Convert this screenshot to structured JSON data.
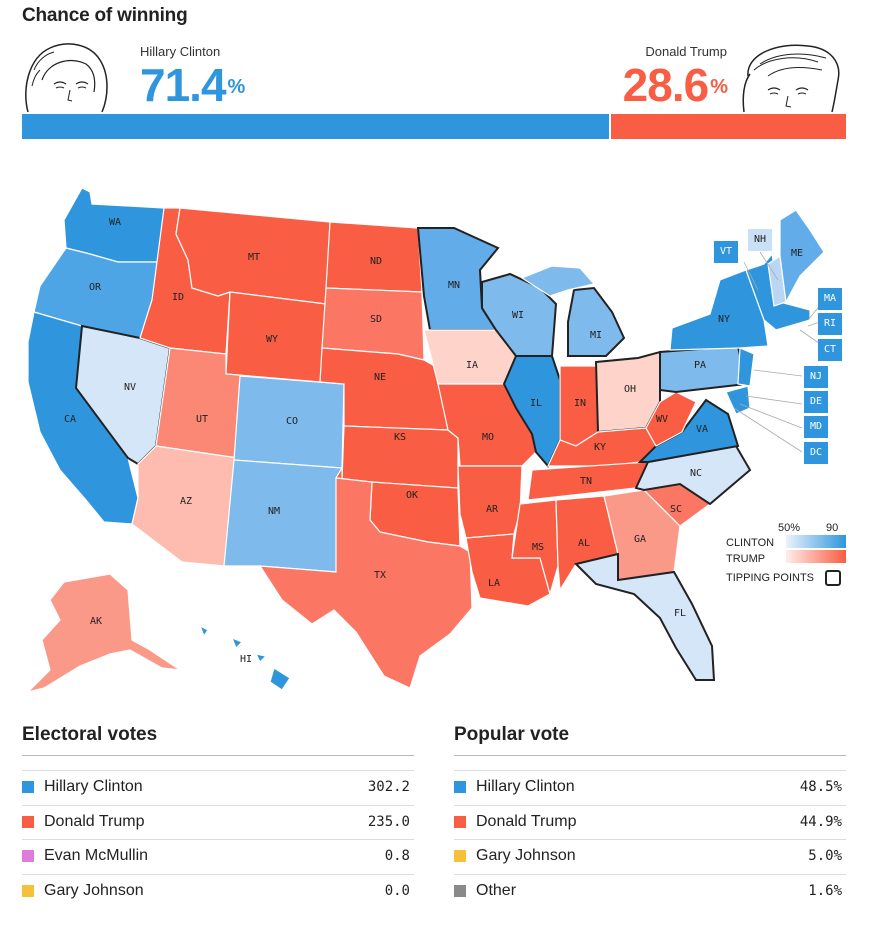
{
  "header": {
    "title": "Chance of winning"
  },
  "clinton": {
    "name": "Hillary Clinton",
    "pct": "71.4",
    "pct_sign": "%",
    "chance": 71.4,
    "color": "#2f96de"
  },
  "trump": {
    "name": "Donald Trump",
    "pct": "28.6",
    "pct_sign": "%",
    "chance": 28.6,
    "color": "#f95d43"
  },
  "map": {
    "states": [
      "WA",
      "OR",
      "CA",
      "NV",
      "ID",
      "MT",
      "WY",
      "UT",
      "AZ",
      "CO",
      "NM",
      "ND",
      "SD",
      "NE",
      "KS",
      "OK",
      "TX",
      "MN",
      "IA",
      "MO",
      "AR",
      "LA",
      "WI",
      "IL",
      "MI",
      "IN",
      "OH",
      "KY",
      "TN",
      "MS",
      "AL",
      "GA",
      "FL",
      "SC",
      "NC",
      "VA",
      "WV",
      "PA",
      "NY",
      "ME",
      "AK",
      "HI"
    ],
    "small_states": [
      "VT",
      "NH",
      "MA",
      "RI",
      "CT",
      "NJ",
      "DE",
      "MD",
      "DC"
    ],
    "legend": {
      "clinton": "CLINTON",
      "trump": "TRUMP",
      "low": "50%",
      "high": "90",
      "tipping": "TIPPING POINTS"
    }
  },
  "electoral": {
    "title": "Electoral votes",
    "rows": [
      {
        "name": "Hillary Clinton",
        "value": "302.2",
        "color": "#2f96de"
      },
      {
        "name": "Donald Trump",
        "value": "235.0",
        "color": "#f95d43"
      },
      {
        "name": "Evan McMullin",
        "value": "0.8",
        "color": "#df7cdb"
      },
      {
        "name": "Gary Johnson",
        "value": "0.0",
        "color": "#f5c13a"
      }
    ]
  },
  "popular": {
    "title": "Popular vote",
    "rows": [
      {
        "name": "Hillary Clinton",
        "value": "48.5%",
        "color": "#2f96de"
      },
      {
        "name": "Donald Trump",
        "value": "44.9%",
        "color": "#f95d43"
      },
      {
        "name": "Gary Johnson",
        "value": "5.0%",
        "color": "#f5c13a"
      },
      {
        "name": "Other",
        "value": "1.6%",
        "color": "#8a8a8a"
      }
    ]
  }
}
